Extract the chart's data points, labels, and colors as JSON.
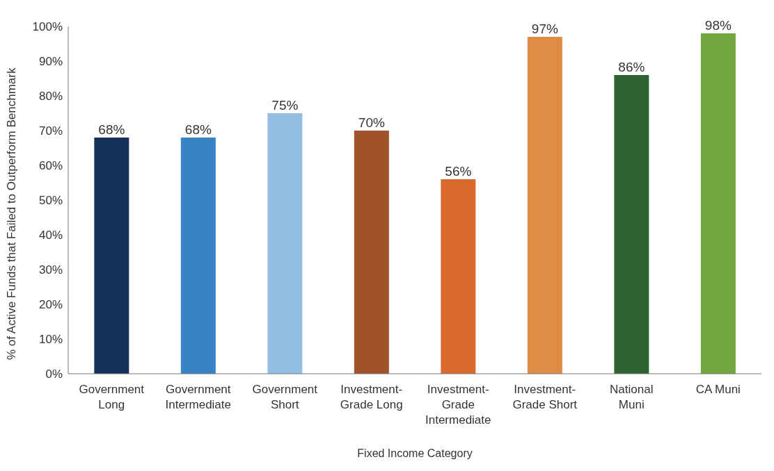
{
  "chart_data": {
    "type": "bar",
    "xlabel": "Fixed Income Category",
    "ylabel": "% of Active Funds that Failed to Outperform Benchmark",
    "categories": [
      "Government\nLong",
      "Government\nIntermediate",
      "Government\nShort",
      "Investment-\nGrade Long",
      "Investment-\nGrade\nIntermediate",
      "Investment-\nGrade Short",
      "National\nMuni",
      "CA Muni"
    ],
    "values": [
      68,
      68,
      75,
      70,
      56,
      97,
      86,
      98
    ],
    "colors": [
      "#14325a",
      "#3a82c6",
      "#94bfe3",
      "#a0522a",
      "#d9692c",
      "#e08c45",
      "#2e6332",
      "#6fa640"
    ],
    "value_labels": [
      "68%",
      "68%",
      "75%",
      "70%",
      "56%",
      "97%",
      "86%",
      "98%"
    ],
    "ylim": [
      0,
      100
    ],
    "yticks": [
      {
        "value": 0,
        "label": "0%"
      },
      {
        "value": 10,
        "label": "10%"
      },
      {
        "value": 20,
        "label": "20%"
      },
      {
        "value": 30,
        "label": "30%"
      },
      {
        "value": 40,
        "label": "40%"
      },
      {
        "value": 50,
        "label": "50%"
      },
      {
        "value": 60,
        "label": "60%"
      },
      {
        "value": 70,
        "label": "70%"
      },
      {
        "value": 80,
        "label": "80%"
      },
      {
        "value": 90,
        "label": "90%"
      },
      {
        "value": 100,
        "label": "100%"
      }
    ],
    "grid": false,
    "legend": false
  }
}
